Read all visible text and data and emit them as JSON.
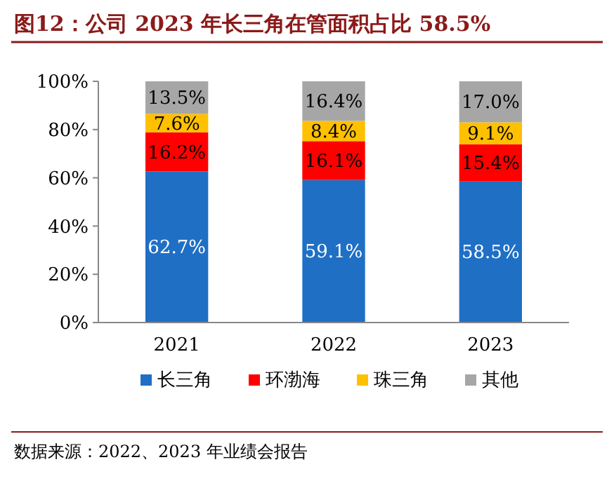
{
  "chart_data": {
    "type": "bar",
    "title": "图12：公司 2023 年长三角在管面积占比 58.5%",
    "categories": [
      "2021",
      "2022",
      "2023"
    ],
    "stacked": true,
    "series": [
      {
        "name": "长三角",
        "color": "#1f6fc5",
        "values": [
          62.7,
          59.1,
          58.5
        ],
        "value_labels": [
          "62.7%",
          "59.1%",
          "58.5%"
        ]
      },
      {
        "name": "环渤海",
        "color": "#ff0000",
        "values": [
          16.2,
          16.1,
          15.4
        ],
        "value_labels": [
          "16.2%",
          "16.1%",
          "15.4%"
        ]
      },
      {
        "name": "珠三角",
        "color": "#ffc000",
        "values": [
          7.6,
          8.4,
          9.1
        ],
        "value_labels": [
          "7.6%",
          "8.4%",
          "9.1%"
        ]
      },
      {
        "name": "其他",
        "color": "#a6a6a6",
        "values": [
          13.5,
          16.4,
          17.0
        ],
        "value_labels": [
          "13.5%",
          "16.4%",
          "17.0%"
        ]
      }
    ],
    "ylim": [
      0,
      100
    ],
    "yticks": [
      {
        "value": 0,
        "label": "0%"
      },
      {
        "value": 20,
        "label": "20%"
      },
      {
        "value": 40,
        "label": "40%"
      },
      {
        "value": 60,
        "label": "60%"
      },
      {
        "value": 80,
        "label": "80%"
      },
      {
        "value": 100,
        "label": "100%"
      }
    ],
    "grid": false,
    "legend": "bottom",
    "annotations": [
      "数据来源：2022、2023 年业绩会报告"
    ]
  }
}
